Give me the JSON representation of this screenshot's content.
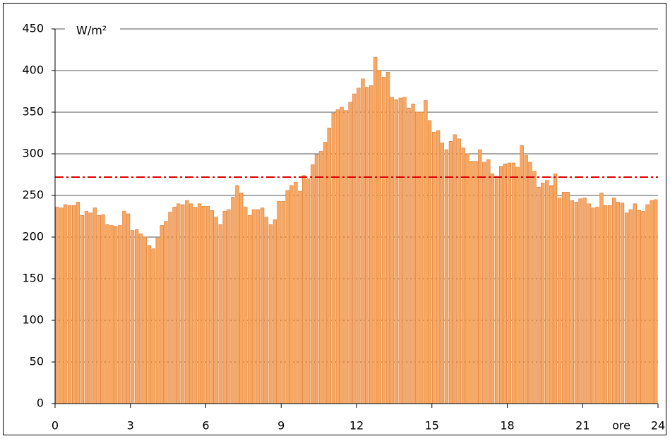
{
  "chart_data": {
    "type": "bar",
    "y_label": "W/m²",
    "x_label": "ore",
    "x": [
      0,
      0.17,
      0.33,
      0.5,
      0.67,
      0.83,
      1,
      1.17,
      1.33,
      1.5,
      1.67,
      1.83,
      2,
      2.17,
      2.33,
      2.5,
      2.67,
      2.83,
      3,
      3.17,
      3.33,
      3.5,
      3.67,
      3.83,
      4,
      4.17,
      4.33,
      4.5,
      4.67,
      4.83,
      5,
      5.17,
      5.33,
      5.5,
      5.67,
      5.83,
      6,
      6.17,
      6.33,
      6.5,
      6.67,
      6.83,
      7,
      7.17,
      7.33,
      7.5,
      7.67,
      7.83,
      8,
      8.17,
      8.33,
      8.5,
      8.67,
      8.83,
      9,
      9.17,
      9.33,
      9.5,
      9.67,
      9.83,
      10,
      10.17,
      10.33,
      10.5,
      10.67,
      10.83,
      11,
      11.17,
      11.33,
      11.5,
      11.67,
      11.83,
      12,
      12.17,
      12.33,
      12.5,
      12.67,
      12.83,
      13,
      13.17,
      13.33,
      13.5,
      13.67,
      13.83,
      14,
      14.17,
      14.33,
      14.5,
      14.67,
      14.83,
      15,
      15.17,
      15.33,
      15.5,
      15.67,
      15.83,
      16,
      16.17,
      16.33,
      16.5,
      16.67,
      16.83,
      17,
      17.17,
      17.33,
      17.5,
      17.67,
      17.83,
      18,
      18.17,
      18.33,
      18.5,
      18.67,
      18.83,
      19,
      19.17,
      19.33,
      19.5,
      19.67,
      19.83,
      20,
      20.17,
      20.33,
      20.5,
      20.67,
      20.83,
      21,
      21.17,
      21.33,
      21.5,
      21.67,
      21.83,
      22,
      22.17,
      22.33,
      22.5,
      22.67,
      22.83,
      23,
      23.17,
      23.33,
      23.5,
      23.67,
      23.83
    ],
    "values": [
      236,
      235,
      239,
      238,
      238,
      242,
      226,
      231,
      229,
      235,
      226,
      227,
      215,
      214,
      213,
      214,
      231,
      228,
      208,
      209,
      204,
      200,
      190,
      186,
      199,
      214,
      219,
      230,
      236,
      240,
      239,
      244,
      240,
      236,
      240,
      237,
      237,
      232,
      224,
      215,
      231,
      233,
      248,
      262,
      253,
      236,
      226,
      233,
      233,
      235,
      224,
      215,
      221,
      243,
      243,
      256,
      262,
      266,
      255,
      274,
      270,
      287,
      299,
      303,
      314,
      331,
      349,
      353,
      356,
      352,
      362,
      372,
      379,
      390,
      380,
      382,
      416,
      400,
      392,
      398,
      368,
      365,
      367,
      368,
      355,
      360,
      350,
      350,
      364,
      340,
      326,
      328,
      313,
      305,
      315,
      323,
      318,
      307,
      300,
      291,
      291,
      305,
      290,
      293,
      276,
      273,
      285,
      288,
      289,
      289,
      284,
      310,
      298,
      290,
      279,
      260,
      265,
      268,
      262,
      276,
      247,
      254,
      254,
      244,
      242,
      246,
      247,
      240,
      235,
      236,
      253,
      238,
      238,
      247,
      242,
      241,
      229,
      233,
      240,
      232,
      231,
      239,
      244,
      245
    ],
    "color": "#f8a860",
    "edge_color": "#d9783a",
    "bar_width_hours": 0.17,
    "reference_line": 272,
    "reference_color": "#e00000",
    "xlim": [
      0,
      24
    ],
    "xticks": [
      0,
      3,
      6,
      9,
      12,
      15,
      18,
      21,
      24
    ],
    "ylim": [
      0,
      450
    ],
    "yticks": [
      0,
      50,
      100,
      150,
      200,
      250,
      300,
      350,
      400,
      450
    ],
    "grid": true
  }
}
